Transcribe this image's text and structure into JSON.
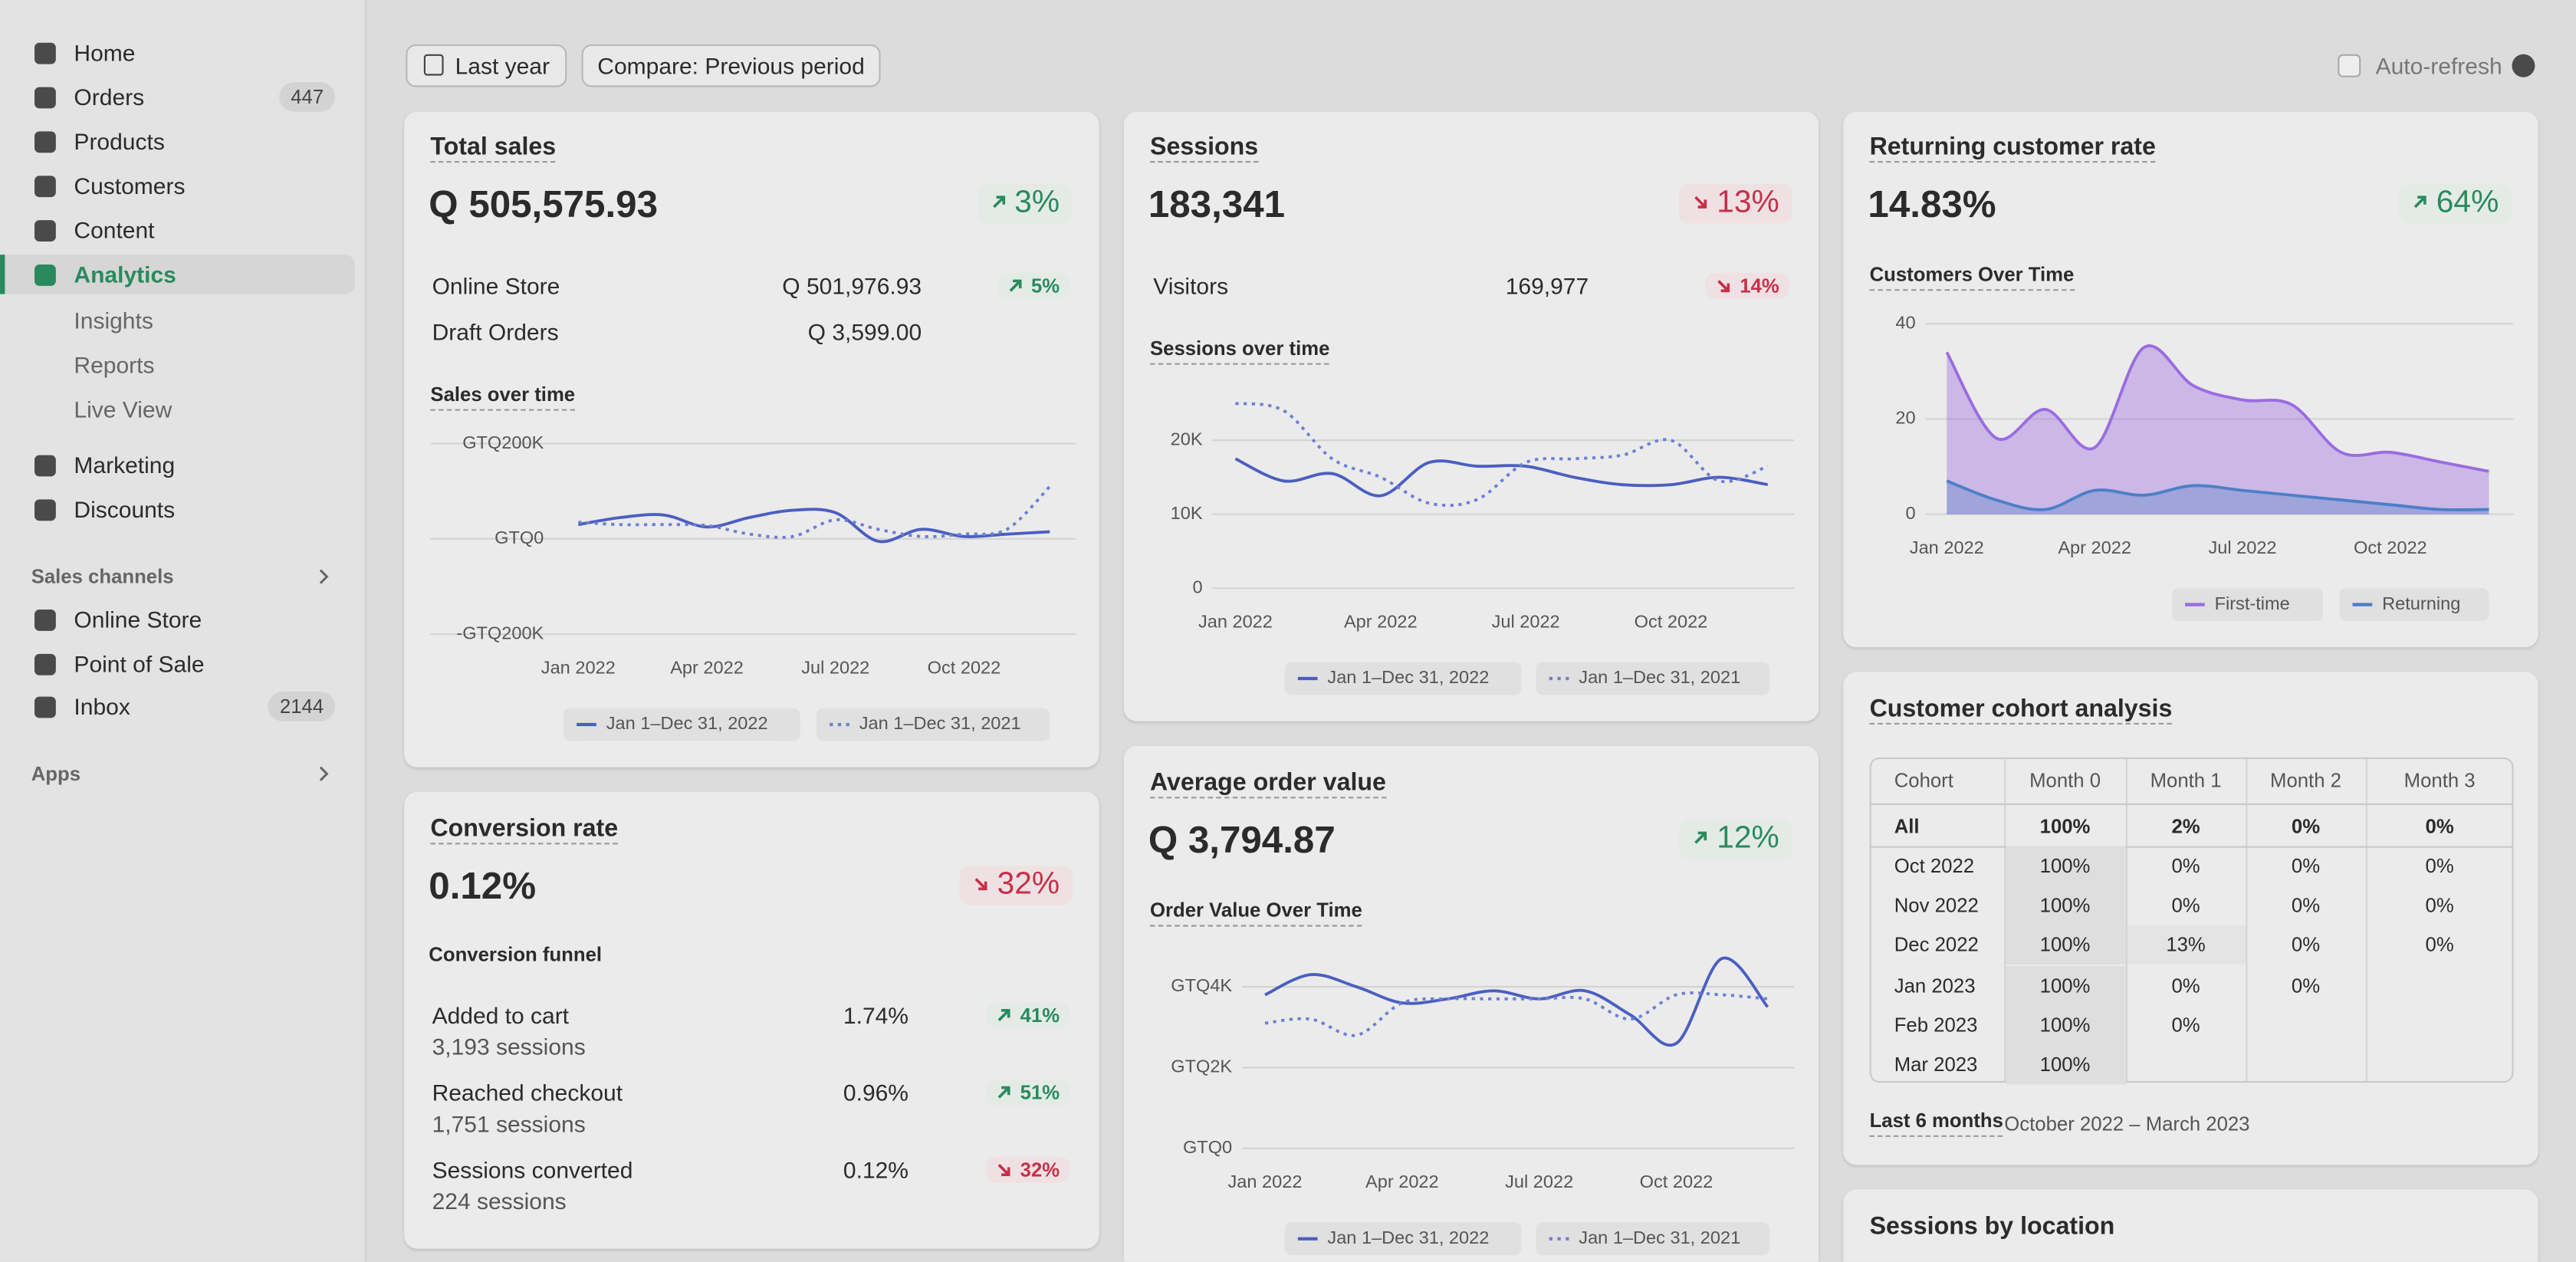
{
  "sidebar": {
    "main": [
      {
        "label": "Home"
      },
      {
        "label": "Orders",
        "badge": 447
      },
      {
        "label": "Products"
      },
      {
        "label": "Customers"
      },
      {
        "label": "Content"
      },
      {
        "label": "Analytics"
      }
    ],
    "active": 5,
    "analytics_sub": [
      "Insights",
      "Reports",
      "Live View"
    ],
    "more": [
      "Marketing",
      "Discounts"
    ],
    "sales_channels_title": "Sales channels",
    "channels": [
      {
        "label": "Online Store"
      },
      {
        "label": "Point of Sale"
      },
      {
        "label": "Inbox",
        "badge": 2144
      }
    ],
    "apps_title": "Apps"
  },
  "toolbar": {
    "date_range": "Last year",
    "compare": "Compare: Previous period",
    "auto_refresh": "Auto-refresh"
  },
  "total_sales": {
    "title": "Total sales",
    "value": "Q 505,575.93",
    "change": "3%",
    "trend": "up",
    "rows": [
      {
        "label": "Online Store",
        "value": "Q 501,976.93",
        "change": "5%",
        "trend": "up"
      },
      {
        "label": "Draft Orders",
        "value": "Q 3,599.00"
      }
    ],
    "chart": {
      "type": "line",
      "title": "Sales over time",
      "categories": [
        "Jan 2022",
        null,
        null,
        "Apr 2022",
        null,
        null,
        "Jul 2022",
        null,
        null,
        "Oct 2022",
        null,
        null
      ],
      "ylim": [
        -200000,
        200000
      ],
      "yticks": [
        {
          "value": 200000,
          "label": "GTQ200K"
        },
        {
          "value": 0,
          "label": "GTQ0"
        },
        {
          "value": -200000,
          "label": "-GTQ200K"
        }
      ],
      "series": [
        {
          "name": "Jan 1–Dec 31, 2022",
          "color": "#4a5fc1",
          "values": [
            30000,
            45000,
            50000,
            25000,
            45000,
            60000,
            55000,
            -5000,
            20000,
            5000,
            10000,
            15000
          ]
        },
        {
          "name": "Jan 1–Dec 31, 2021",
          "color": "#6d80d2",
          "dash": true,
          "values": [
            35000,
            30000,
            30000,
            28000,
            10000,
            5000,
            40000,
            20000,
            5000,
            10000,
            20000,
            110000
          ]
        }
      ]
    }
  },
  "sessions": {
    "title": "Sessions",
    "value": "183,341",
    "change": "13%",
    "trend": "down",
    "rows": [
      {
        "label": "Visitors",
        "value": "169,977",
        "change": "14%",
        "trend": "down"
      }
    ],
    "chart": {
      "type": "line",
      "title": "Sessions over time",
      "categories": [
        "Jan 2022",
        null,
        null,
        "Apr 2022",
        null,
        null,
        "Jul 2022",
        null,
        null,
        "Oct 2022",
        null,
        null
      ],
      "ylim": [
        0,
        26000
      ],
      "yticks": [
        {
          "value": 20000,
          "label": "20K"
        },
        {
          "value": 10000,
          "label": "10K"
        },
        0
      ],
      "series": [
        {
          "name": "Jan 1–Dec 31, 2022",
          "color": "#4a5fc1",
          "values": [
            17500,
            14500,
            15500,
            12500,
            17000,
            16500,
            16500,
            15000,
            14000,
            14000,
            15000,
            14000
          ]
        },
        {
          "name": "Jan 1–Dec 31, 2021",
          "color": "#6d80d2",
          "dash": true,
          "values": [
            25000,
            24000,
            17500,
            15000,
            11500,
            12000,
            17000,
            17500,
            18000,
            20000,
            14500,
            16500
          ]
        }
      ]
    }
  },
  "returning_customer_rate": {
    "title": "Returning customer rate",
    "value": "14.83%",
    "change": "64%",
    "trend": "up",
    "chart": {
      "type": "area",
      "title": "Customers Over Time",
      "categories": [
        "Jan 2022",
        null,
        null,
        "Apr 2022",
        null,
        null,
        "Jul 2022",
        null,
        null,
        "Oct 2022",
        null,
        null
      ],
      "ylim": [
        0,
        40
      ],
      "yticks": [
        40,
        20,
        0
      ],
      "series": [
        {
          "name": "First-time",
          "color": "#9b6ce0",
          "values": [
            34,
            16,
            22,
            14,
            35,
            27,
            24,
            23,
            13,
            13,
            11,
            9
          ]
        },
        {
          "name": "Returning",
          "color": "#4d7fc7",
          "values": [
            7,
            3,
            1,
            5,
            4,
            6,
            5,
            4,
            3,
            2,
            1,
            1
          ]
        }
      ]
    }
  },
  "conversion_rate": {
    "title": "Conversion rate",
    "value": "0.12%",
    "change": "32%",
    "trend": "down",
    "funnel_title": "Conversion funnel",
    "rows": [
      {
        "label": "Added to cart",
        "sessions": "3,193 sessions",
        "value": "1.74%",
        "change": "41%",
        "trend": "up"
      },
      {
        "label": "Reached checkout",
        "sessions": "1,751 sessions",
        "value": "0.96%",
        "change": "51%",
        "trend": "up"
      },
      {
        "label": "Sessions converted",
        "sessions": "224 sessions",
        "value": "0.12%",
        "change": "32%",
        "trend": "down"
      }
    ]
  },
  "average_order_value": {
    "title": "Average order value",
    "value": "Q 3,794.87",
    "change": "12%",
    "trend": "up",
    "chart": {
      "type": "line",
      "title": "Order Value Over Time",
      "categories": [
        "Jan 2022",
        null,
        null,
        "Apr 2022",
        null,
        null,
        "Jul 2022",
        null,
        null,
        "Oct 2022",
        null,
        null
      ],
      "ylim": [
        0,
        5000
      ],
      "yticks": [
        {
          "value": 4000,
          "label": "GTQ4K"
        },
        {
          "value": 2000,
          "label": "GTQ2K"
        },
        {
          "value": 0,
          "label": "GTQ0"
        }
      ],
      "series": [
        {
          "name": "Jan 1–Dec 31, 2022",
          "color": "#4a5fc1",
          "values": [
            3800,
            4300,
            4000,
            3600,
            3700,
            3900,
            3700,
            3900,
            3300,
            2600,
            4700,
            3500
          ]
        },
        {
          "name": "Jan 1–Dec 31, 2021",
          "color": "#6d80d2",
          "dash": true,
          "values": [
            3100,
            3200,
            2800,
            3600,
            3700,
            3700,
            3700,
            3700,
            3200,
            3800,
            3800,
            3700
          ]
        }
      ]
    }
  },
  "cohort": {
    "title": "Customer cohort analysis",
    "header": [
      "Cohort",
      "Month 0",
      "Month 1",
      "Month 2",
      "Month 3"
    ],
    "rows": [
      [
        "All",
        "100%",
        "2%",
        "0%",
        "0%"
      ],
      [
        "Oct 2022",
        "100%",
        "0%",
        "0%",
        "0%"
      ],
      [
        "Nov 2022",
        "100%",
        "0%",
        "0%",
        "0%"
      ],
      [
        "Dec 2022",
        "100%",
        "13%",
        "0%",
        "0%"
      ],
      [
        "Jan 2023",
        "100%",
        "0%",
        "0%"
      ],
      [
        "Feb 2023",
        "100%",
        "0%"
      ],
      [
        "Mar 2023",
        "100%"
      ]
    ],
    "footer_label": "Last 6 months",
    "footer_range": "October 2022 – March 2023"
  },
  "sessions_by_location": {
    "title": "Sessions by location"
  }
}
